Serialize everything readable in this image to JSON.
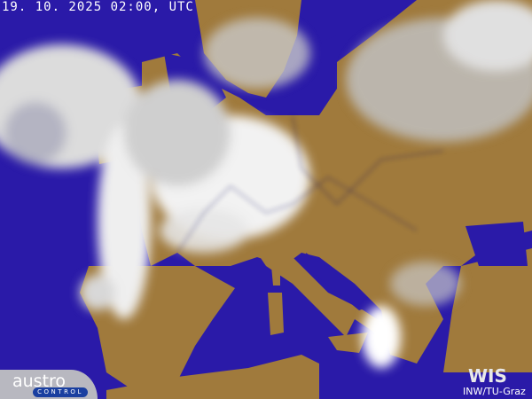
{
  "timestamp": "19. 10. 2025 02:00, UTC",
  "logos": {
    "left": "austro CONTROL",
    "left_word": "austro",
    "left_sub": "CONTROL",
    "right": "WIS",
    "right_credit": "INW/TU-Graz"
  },
  "colors": {
    "sea": "#2a1aa8",
    "land": "#a07a3c",
    "cloud": "#e8e8e8",
    "borders": "#101060"
  }
}
